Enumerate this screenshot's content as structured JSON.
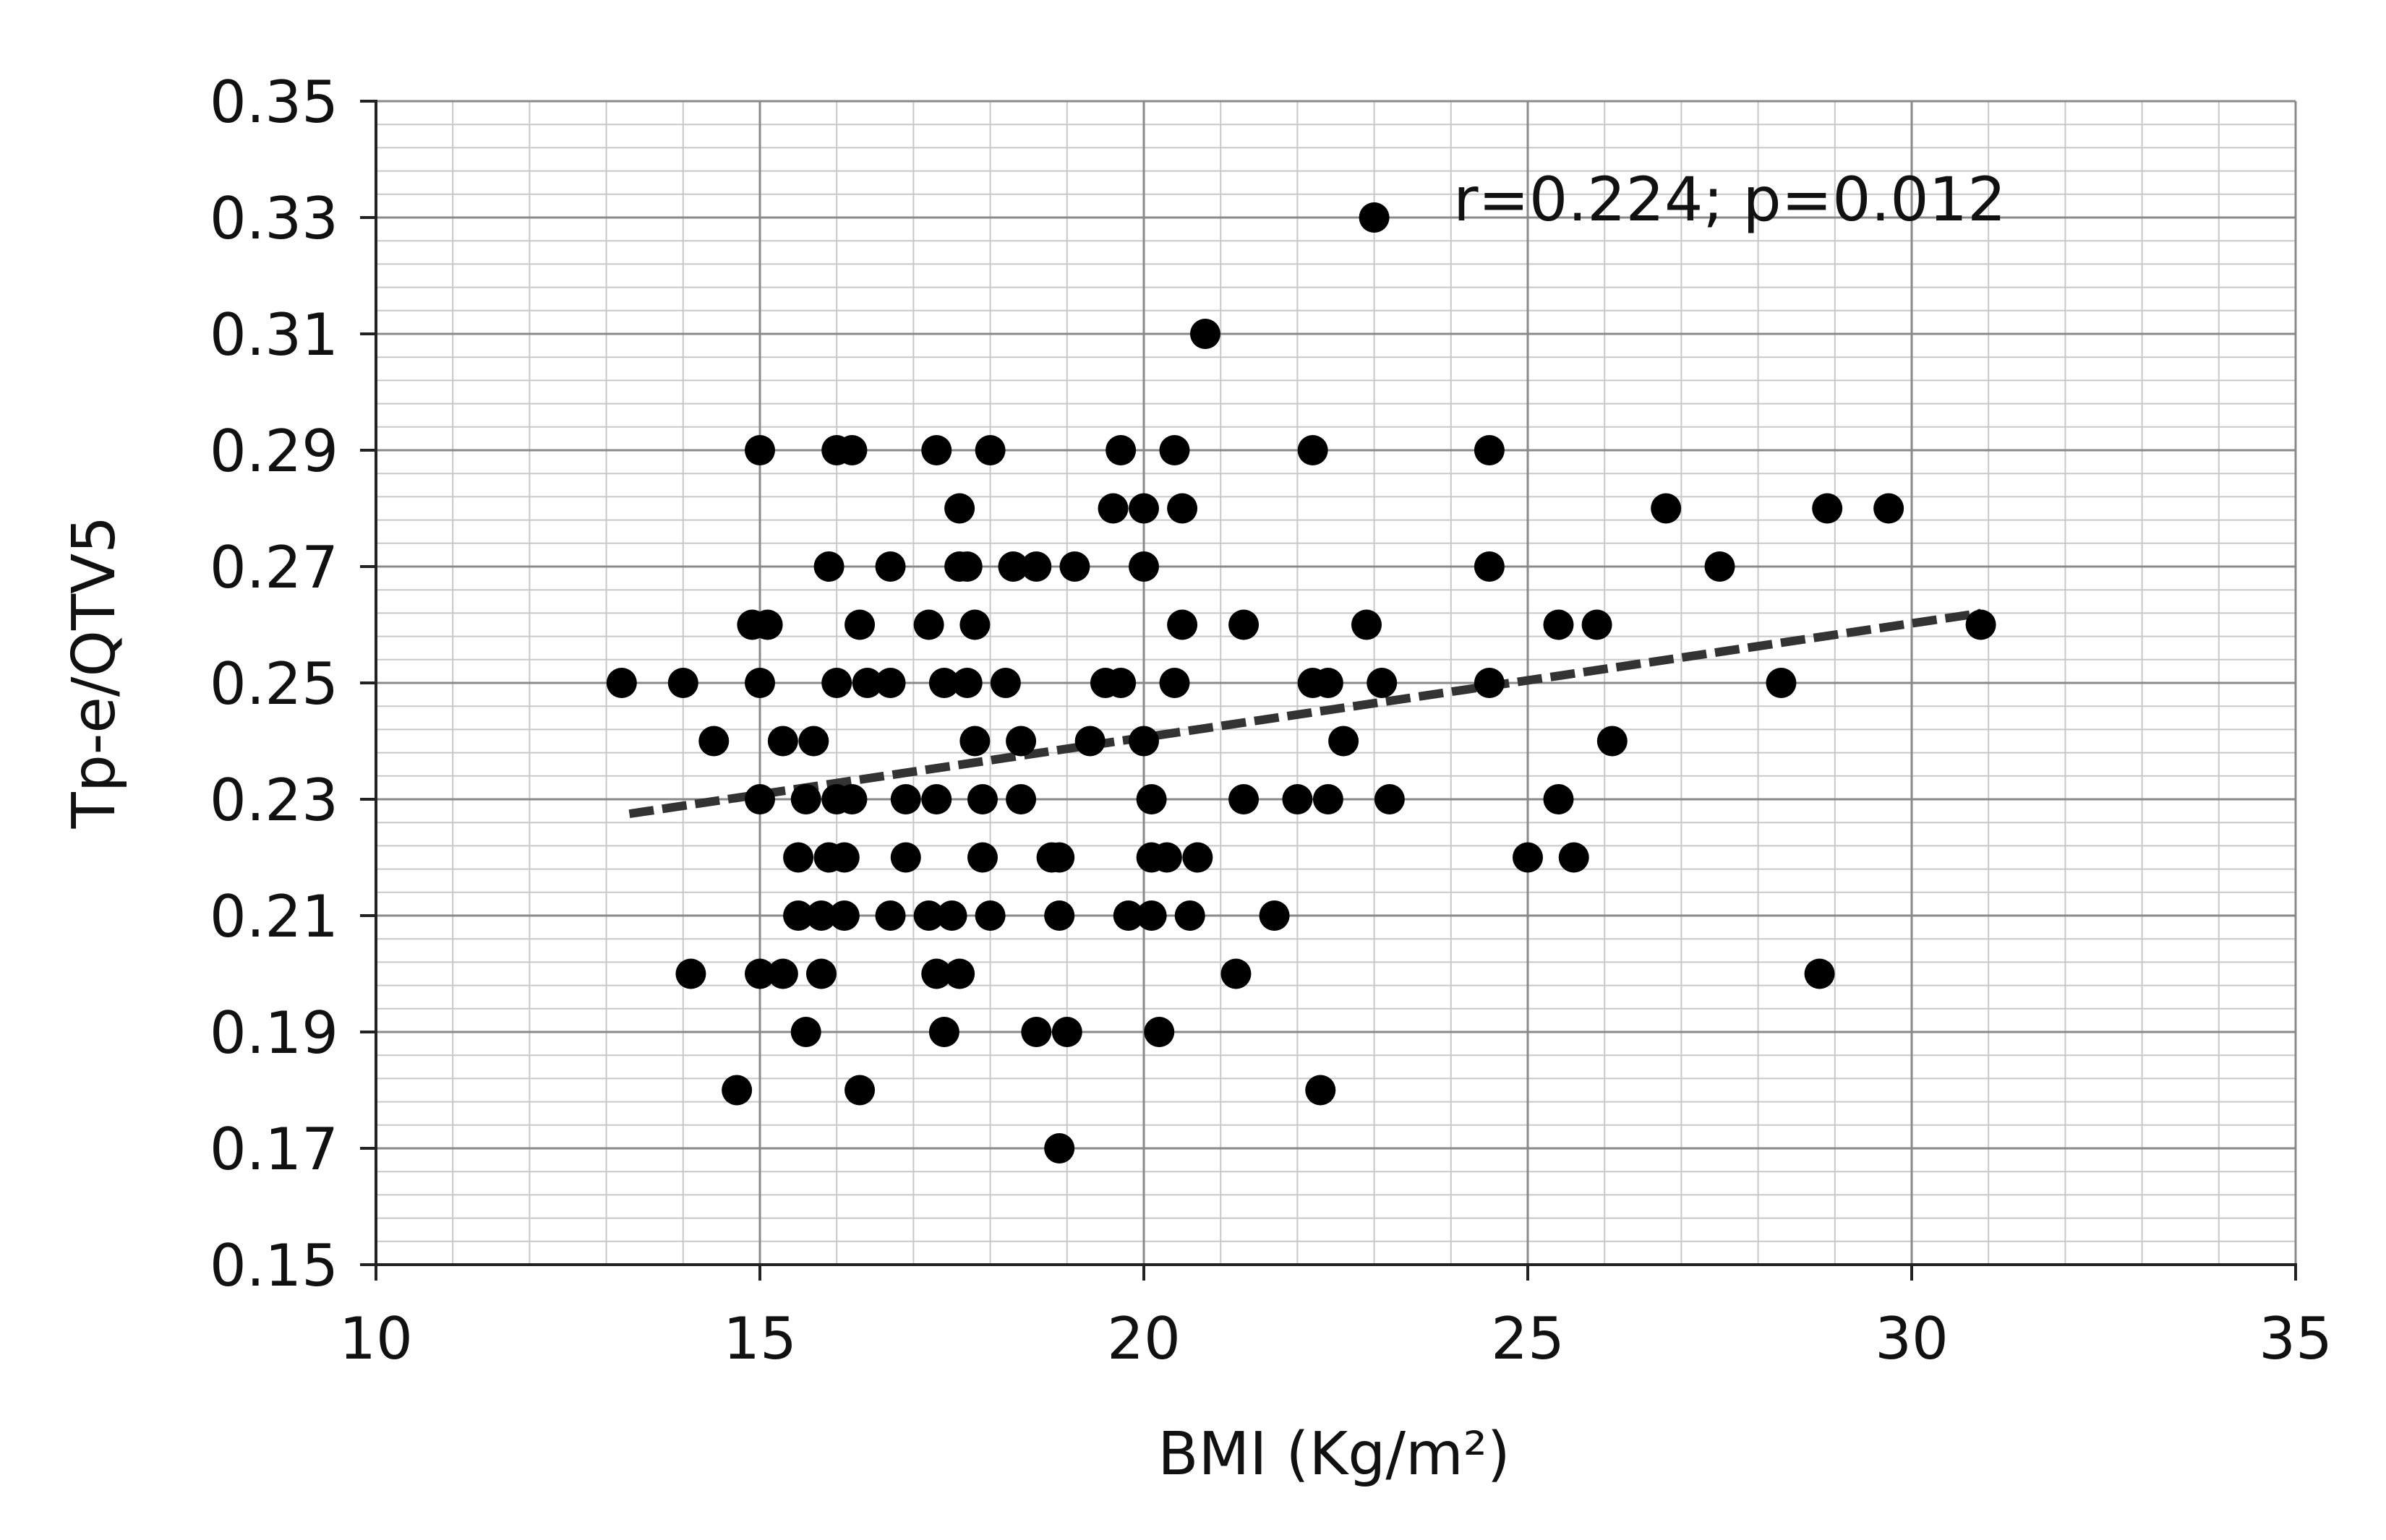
{
  "chart_data": {
    "type": "scatter",
    "title": "",
    "xlabel": "BMI (Kg/m²)",
    "ylabel": "Tp-e/QTV5",
    "xlim": [
      10,
      35
    ],
    "ylim": [
      0.15,
      0.35
    ],
    "x_ticks": [
      "10",
      "15",
      "20",
      "25",
      "30",
      "35"
    ],
    "y_ticks": [
      "0.15",
      "0.17",
      "0.19",
      "0.21",
      "0.23",
      "0.25",
      "0.27",
      "0.29",
      "0.31",
      "0.33",
      "0.35"
    ],
    "grid": true,
    "annotation": "r=0.224; p=0.012",
    "trendline": {
      "style": "dashed",
      "x": [
        13.3,
        30.9
      ],
      "y": [
        0.2275,
        0.262
      ]
    },
    "series": [
      {
        "points": [
          [
            13.2,
            0.25
          ],
          [
            14.0,
            0.25
          ],
          [
            14.1,
            0.2
          ],
          [
            14.4,
            0.24
          ],
          [
            14.7,
            0.18
          ],
          [
            14.9,
            0.26
          ],
          [
            15.0,
            0.29
          ],
          [
            15.0,
            0.25
          ],
          [
            15.0,
            0.2
          ],
          [
            15.0,
            0.23
          ],
          [
            15.1,
            0.26
          ],
          [
            15.3,
            0.24
          ],
          [
            15.3,
            0.2
          ],
          [
            15.5,
            0.21
          ],
          [
            15.5,
            0.22
          ],
          [
            15.6,
            0.23
          ],
          [
            15.6,
            0.19
          ],
          [
            15.7,
            0.24
          ],
          [
            15.8,
            0.21
          ],
          [
            15.8,
            0.2
          ],
          [
            15.9,
            0.27
          ],
          [
            15.9,
            0.22
          ],
          [
            16.0,
            0.29
          ],
          [
            16.0,
            0.25
          ],
          [
            16.0,
            0.23
          ],
          [
            16.1,
            0.22
          ],
          [
            16.1,
            0.21
          ],
          [
            16.2,
            0.29
          ],
          [
            16.2,
            0.23
          ],
          [
            16.3,
            0.26
          ],
          [
            16.3,
            0.18
          ],
          [
            16.4,
            0.25
          ],
          [
            16.7,
            0.27
          ],
          [
            16.7,
            0.25
          ],
          [
            16.7,
            0.21
          ],
          [
            16.9,
            0.23
          ],
          [
            16.9,
            0.22
          ],
          [
            17.2,
            0.26
          ],
          [
            17.2,
            0.21
          ],
          [
            17.3,
            0.29
          ],
          [
            17.3,
            0.2
          ],
          [
            17.3,
            0.23
          ],
          [
            17.4,
            0.25
          ],
          [
            17.4,
            0.19
          ],
          [
            17.5,
            0.21
          ],
          [
            17.6,
            0.28
          ],
          [
            17.6,
            0.27
          ],
          [
            17.6,
            0.2
          ],
          [
            17.7,
            0.27
          ],
          [
            17.7,
            0.25
          ],
          [
            17.8,
            0.24
          ],
          [
            17.8,
            0.26
          ],
          [
            17.9,
            0.23
          ],
          [
            17.9,
            0.22
          ],
          [
            18.0,
            0.29
          ],
          [
            18.0,
            0.21
          ],
          [
            18.2,
            0.25
          ],
          [
            18.3,
            0.27
          ],
          [
            18.4,
            0.23
          ],
          [
            18.4,
            0.24
          ],
          [
            18.6,
            0.27
          ],
          [
            18.6,
            0.19
          ],
          [
            18.8,
            0.22
          ],
          [
            18.9,
            0.21
          ],
          [
            18.9,
            0.22
          ],
          [
            18.9,
            0.17
          ],
          [
            19.0,
            0.19
          ],
          [
            19.1,
            0.27
          ],
          [
            19.3,
            0.24
          ],
          [
            19.5,
            0.25
          ],
          [
            19.6,
            0.28
          ],
          [
            19.7,
            0.25
          ],
          [
            19.7,
            0.29
          ],
          [
            19.8,
            0.21
          ],
          [
            20.0,
            0.27
          ],
          [
            20.0,
            0.24
          ],
          [
            20.0,
            0.28
          ],
          [
            20.1,
            0.22
          ],
          [
            20.1,
            0.23
          ],
          [
            20.1,
            0.21
          ],
          [
            20.2,
            0.19
          ],
          [
            20.3,
            0.22
          ],
          [
            20.4,
            0.29
          ],
          [
            20.4,
            0.25
          ],
          [
            20.5,
            0.28
          ],
          [
            20.5,
            0.26
          ],
          [
            20.6,
            0.21
          ],
          [
            20.7,
            0.22
          ],
          [
            20.8,
            0.31
          ],
          [
            21.2,
            0.2
          ],
          [
            21.3,
            0.23
          ],
          [
            21.3,
            0.26
          ],
          [
            21.7,
            0.21
          ],
          [
            22.0,
            0.23
          ],
          [
            22.2,
            0.29
          ],
          [
            22.2,
            0.25
          ],
          [
            22.3,
            0.18
          ],
          [
            22.4,
            0.23
          ],
          [
            22.4,
            0.25
          ],
          [
            22.6,
            0.24
          ],
          [
            22.9,
            0.26
          ],
          [
            23.0,
            0.33
          ],
          [
            23.1,
            0.25
          ],
          [
            23.2,
            0.23
          ],
          [
            24.5,
            0.29
          ],
          [
            24.5,
            0.27
          ],
          [
            24.5,
            0.25
          ],
          [
            25.0,
            0.22
          ],
          [
            25.4,
            0.26
          ],
          [
            25.4,
            0.23
          ],
          [
            25.6,
            0.22
          ],
          [
            25.9,
            0.26
          ],
          [
            26.1,
            0.24
          ],
          [
            26.8,
            0.28
          ],
          [
            27.5,
            0.27
          ],
          [
            28.3,
            0.25
          ],
          [
            28.8,
            0.2
          ],
          [
            28.9,
            0.28
          ],
          [
            29.7,
            0.28
          ],
          [
            30.9,
            0.26
          ]
        ]
      }
    ]
  }
}
